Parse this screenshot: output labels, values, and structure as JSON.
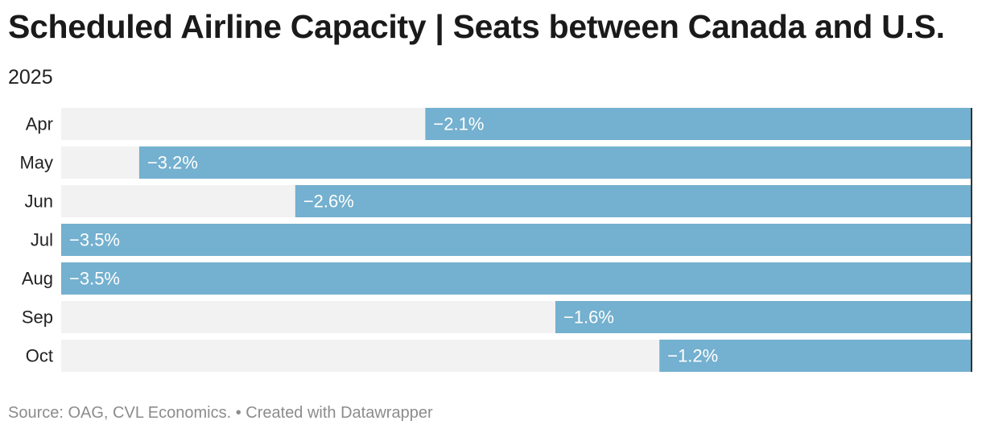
{
  "title": "Scheduled Airline Capacity | Seats between Canada and U.S.",
  "subtitle": "2025",
  "source": {
    "text": "Source: OAG, CVL Economics.",
    "separator": "•",
    "created_with": "Created with Datawrapper"
  },
  "colors": {
    "bar": "#74b0cf",
    "track": "#f2f2f2",
    "zero_line": "#333333"
  },
  "chart_data": {
    "type": "bar",
    "orientation": "horizontal",
    "title": "Scheduled Airline Capacity | Seats between Canada and U.S.",
    "subtitle": "2025",
    "categories": [
      "Apr",
      "May",
      "Jun",
      "Jul",
      "Aug",
      "Sep",
      "Oct"
    ],
    "values": [
      -2.1,
      -3.2,
      -2.6,
      -3.5,
      -3.5,
      -1.6,
      -1.2
    ],
    "labels": [
      "−2.1%",
      "−3.2%",
      "−2.6%",
      "−3.5%",
      "−3.5%",
      "−1.6%",
      "−1.2%"
    ],
    "unit": "%",
    "xlim": [
      -3.5,
      0
    ],
    "xlabel": "",
    "ylabel": ""
  }
}
